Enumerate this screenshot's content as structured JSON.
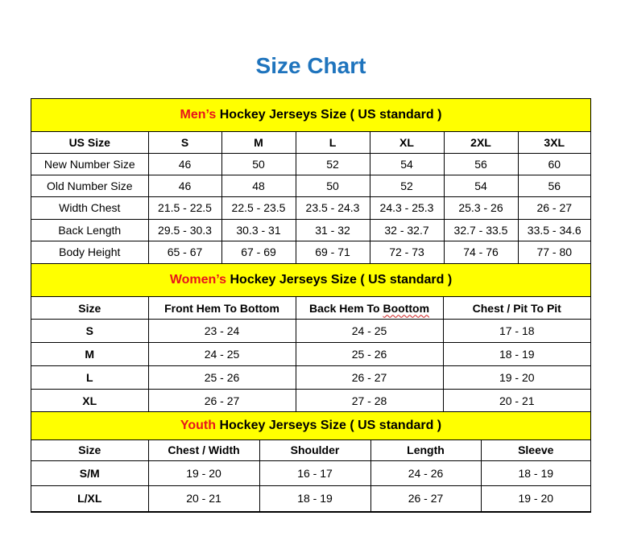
{
  "title": "Size Chart",
  "men": {
    "heading_highlight": "Men’s",
    "heading_rest": "Hockey Jerseys Size ( US standard )",
    "columns": [
      "US Size",
      "S",
      "M",
      "L",
      "XL",
      "2XL",
      "3XL"
    ],
    "rows": [
      [
        "New Number Size",
        "46",
        "50",
        "52",
        "54",
        "56",
        "60"
      ],
      [
        "Old Number Size",
        "46",
        "48",
        "50",
        "52",
        "54",
        "56"
      ],
      [
        "Width Chest",
        "21.5 - 22.5",
        "22.5 - 23.5",
        "23.5 - 24.3",
        "24.3 - 25.3",
        "25.3 - 26",
        "26 - 27"
      ],
      [
        "Back Length",
        "29.5 - 30.3",
        "30.3 - 31",
        "31 - 32",
        "32 - 32.7",
        "32.7 - 33.5",
        "33.5 - 34.6"
      ],
      [
        "Body Height",
        "65 - 67",
        "67 - 69",
        "69 - 71",
        "72 - 73",
        "74 - 76",
        "77 - 80"
      ]
    ]
  },
  "women": {
    "heading_highlight": "Women’s",
    "heading_rest": "Hockey Jerseys Size ( US standard )",
    "columns": [
      "Size",
      "Front Hem To Bottom",
      "Back Hem To Boottom",
      "Chest / Pit To Pit"
    ],
    "rows": [
      [
        "S",
        "23 - 24",
        "24 - 25",
        "17 - 18"
      ],
      [
        "M",
        "24 - 25",
        "25 - 26",
        "18 - 19"
      ],
      [
        "L",
        "25 - 26",
        "26 - 27",
        "19 - 20"
      ],
      [
        "XL",
        "26 - 27",
        "27 - 28",
        "20 - 21"
      ]
    ]
  },
  "youth": {
    "heading_highlight": "Youth",
    "heading_rest": "Hockey Jerseys Size ( US standard )",
    "columns": [
      "Size",
      "Chest / Width",
      "Shoulder",
      "Length",
      "Sleeve"
    ],
    "rows": [
      [
        "S/M",
        "19 - 20",
        "16 - 17",
        "24 - 26",
        "18 - 19"
      ],
      [
        "L/XL",
        "20 - 21",
        "18 - 19",
        "26 - 27",
        "19 - 20"
      ]
    ]
  },
  "colors": {
    "title": "#1f74bd",
    "band": "#ffff00",
    "highlight": "#e8141c"
  }
}
